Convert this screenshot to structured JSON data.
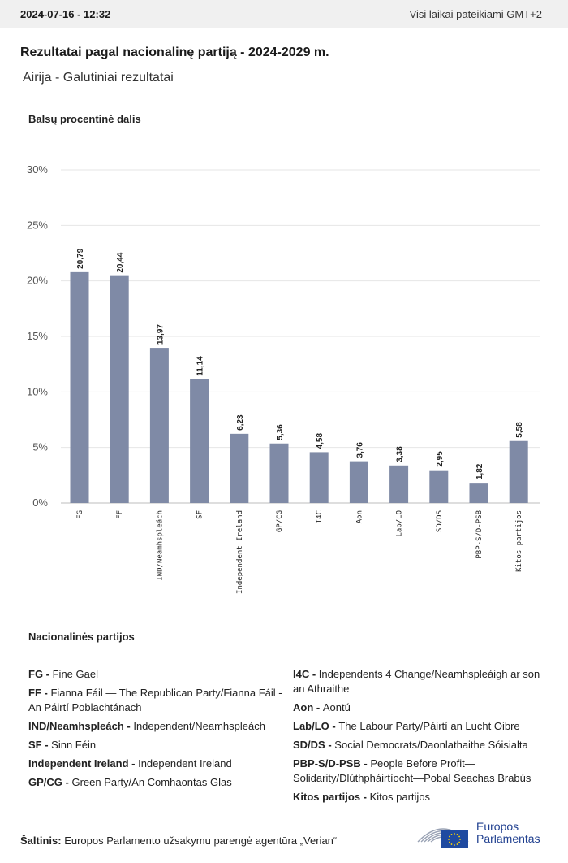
{
  "header": {
    "timestamp": "2024-07-16 - 12:32",
    "timezone_note": "Visi laikai pateikiami GMT+2"
  },
  "title": "Rezultatai pagal nacionalinę partiją - 2024-2029 m.",
  "subtitle": "Airija - Galutiniai rezultatai",
  "chart_data": {
    "type": "bar",
    "ylabel": "Balsų procentinė dalis",
    "ylim": [
      0,
      30
    ],
    "yticks": [
      "0%",
      "5%",
      "10%",
      "15%",
      "20%",
      "25%",
      "30%"
    ],
    "ytick_values": [
      0,
      5,
      10,
      15,
      20,
      25,
      30
    ],
    "grid": true,
    "categories": [
      "FG",
      "FF",
      "IND/Neamhspleách",
      "SF",
      "Independent Ireland",
      "GP/CG",
      "I4C",
      "Aon",
      "Lab/LO",
      "SD/DS",
      "PBP-S/D-PSB",
      "Kitos partijos"
    ],
    "values": [
      20.79,
      20.44,
      13.97,
      11.14,
      6.23,
      5.36,
      4.58,
      3.76,
      3.38,
      2.95,
      1.82,
      5.58
    ],
    "value_labels": [
      "20,79",
      "20,44",
      "13,97",
      "11,14",
      "6,23",
      "5,36",
      "4,58",
      "3,76",
      "3,38",
      "2,95",
      "1,82",
      "5,58"
    ],
    "bar_color": "#7f8aa6"
  },
  "legend": {
    "title": "Nacionalinės partijos",
    "left": [
      {
        "abbr": "FG -",
        "name": "Fine Gael"
      },
      {
        "abbr": "FF -",
        "name": "Fianna Fáil — The Republican Party/Fianna Fáil - An Páirtí Poblachtánach"
      },
      {
        "abbr": "IND/Neamhspleách -",
        "name": "Independent/Neamhspleách"
      },
      {
        "abbr": "SF -",
        "name": "Sinn Féin"
      },
      {
        "abbr": "Independent Ireland -",
        "name": "Independent Ireland"
      },
      {
        "abbr": "GP/CG -",
        "name": "Green Party/An Comhaontas Glas"
      }
    ],
    "right": [
      {
        "abbr": "I4C -",
        "name": "Independents 4 Change/Neamhspleáigh ar son an Athraithe"
      },
      {
        "abbr": "Aon -",
        "name": "Aontú"
      },
      {
        "abbr": "Lab/LO -",
        "name": "The Labour Party/Páirtí an Lucht Oibre"
      },
      {
        "abbr": "SD/DS -",
        "name": "Social Democrats/Daonlathaithe Sóisialta"
      },
      {
        "abbr": "PBP-S/D-PSB -",
        "name": "People Before Profit—Solidarity/Dlúthpháirtíocht—Pobal Seachas Brabús"
      },
      {
        "abbr": "Kitos partijos -",
        "name": "Kitos partijos"
      }
    ]
  },
  "source": {
    "label": "Šaltinis:",
    "text": "Europos Parlamento užsakymu parengė agentūra „Verian“"
  },
  "logo": {
    "line1": "Europos",
    "line2": "Parlamentas",
    "color": "#1f3f8f",
    "flag_color": "#1f4aa0",
    "star_color": "#ffd700"
  }
}
